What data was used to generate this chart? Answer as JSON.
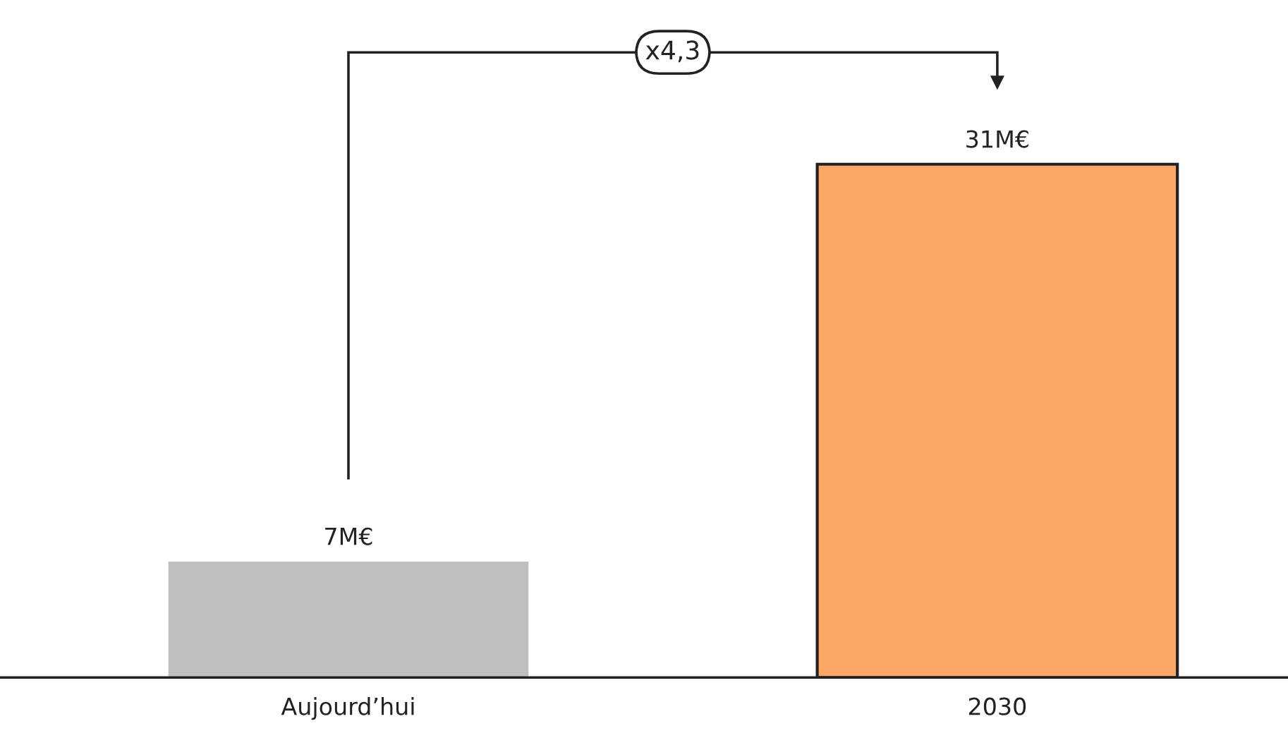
{
  "chart_data": {
    "type": "bar",
    "categories": [
      "Aujourd’hui",
      "2030"
    ],
    "values": [
      7,
      31
    ],
    "colors": [
      "#bfbfbf",
      "#fda766"
    ],
    "value_labels": [
      "7M€",
      "31M€"
    ],
    "annotations": [
      "x4,3"
    ]
  }
}
